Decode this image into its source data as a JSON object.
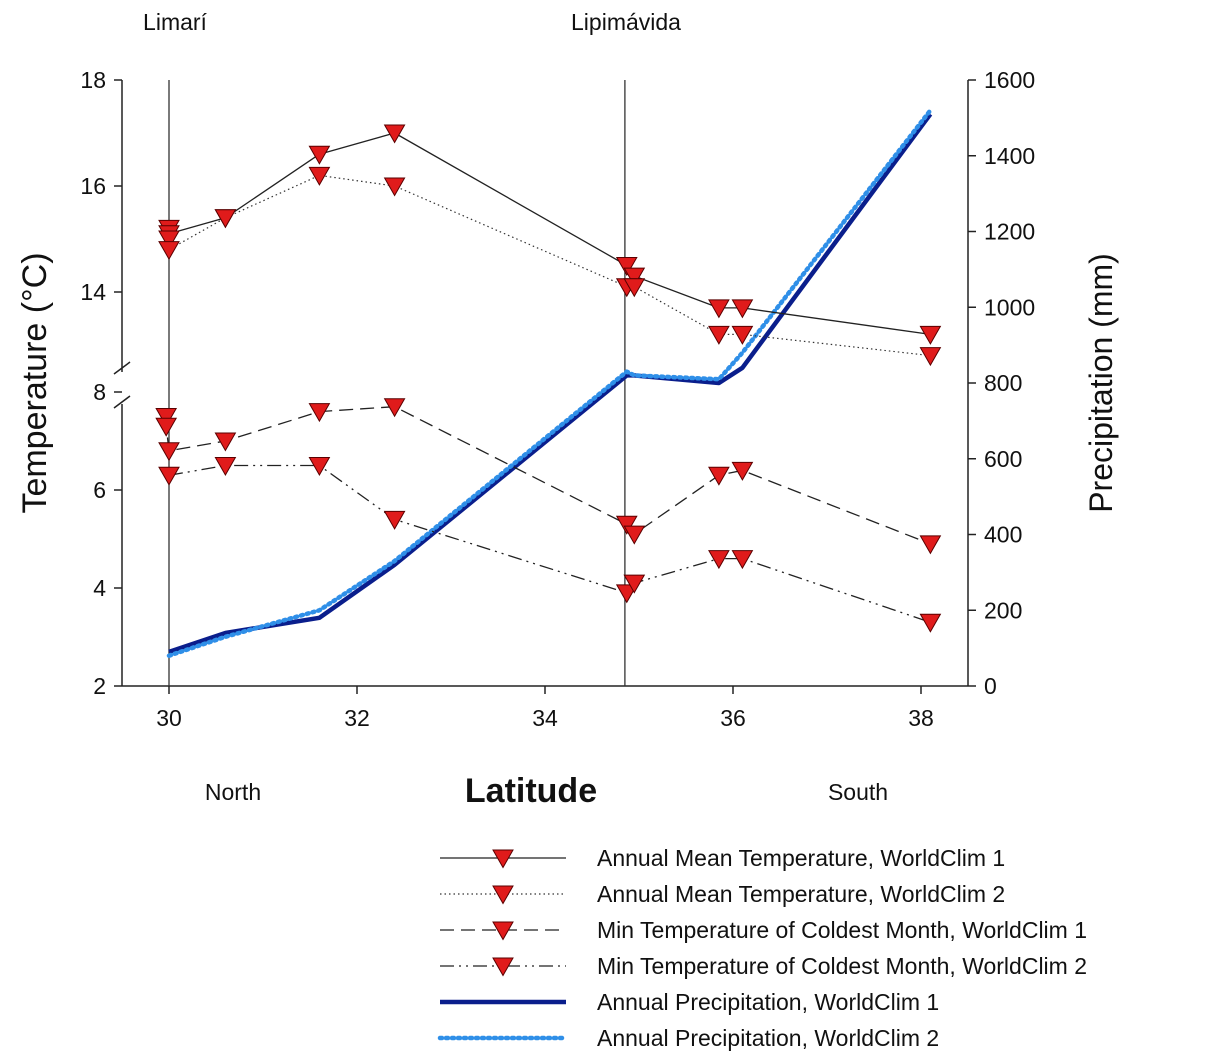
{
  "chart_data": {
    "type": "line",
    "title": "",
    "xlabel": "Latitude",
    "ylabel_left": "Temperature (°C)",
    "ylabel_right": "Precipitation (mm)",
    "direction_labels": {
      "left": "North",
      "right": "South"
    },
    "site_labels": [
      {
        "name": "Limarí",
        "x": 30.0
      },
      {
        "name": "Lipimávida",
        "x": 34.85
      }
    ],
    "xlim": [
      29.5,
      38.5
    ],
    "x_ticks": [
      30,
      32,
      34,
      36,
      38
    ],
    "y_left_upper": {
      "ylim": [
        12,
        18
      ],
      "ticks": [
        14,
        16,
        18
      ]
    },
    "y_left_lower": {
      "ylim": [
        2,
        8
      ],
      "ticks": [
        2,
        4,
        6,
        8
      ]
    },
    "y_left_break": true,
    "y_right": {
      "ylim": [
        0,
        1600
      ],
      "ticks": [
        0,
        200,
        400,
        600,
        800,
        1000,
        1200,
        1400,
        1600
      ]
    },
    "series": [
      {
        "name": "Annual Mean Temperature, WorldClim 1",
        "axis": "left",
        "line_style": "solid",
        "marker": "triangle-down",
        "x": [
          30.0,
          30.0,
          30.6,
          31.6,
          32.4,
          34.87,
          34.95,
          35.85,
          36.1,
          38.1
        ],
        "y": [
          15.2,
          15.1,
          15.4,
          16.6,
          17.0,
          14.5,
          14.3,
          13.7,
          13.7,
          13.2
        ]
      },
      {
        "name": "Annual Mean Temperature, WorldClim 2",
        "axis": "left",
        "line_style": "dotted",
        "marker": "triangle-down",
        "x": [
          30.0,
          30.0,
          30.6,
          31.6,
          32.4,
          34.87,
          34.95,
          35.85,
          36.1,
          38.1
        ],
        "y": [
          15.0,
          14.8,
          15.4,
          16.2,
          16.0,
          14.1,
          14.1,
          13.2,
          13.2,
          12.8
        ]
      },
      {
        "name": "Min Temperature of Coldest Month, WorldClim 1",
        "axis": "left",
        "line_style": "dashed",
        "marker": "triangle-down",
        "x": [
          29.97,
          29.97,
          30.0,
          30.6,
          31.6,
          32.4,
          34.87,
          34.95,
          35.85,
          36.1,
          38.1
        ],
        "y": [
          7.5,
          7.3,
          6.8,
          7.0,
          7.6,
          7.7,
          5.3,
          5.1,
          6.3,
          6.4,
          4.9
        ]
      },
      {
        "name": "Min Temperature of Coldest Month, WorldClim 2",
        "axis": "left",
        "line_style": "dash-dot-dot",
        "marker": "triangle-down",
        "x": [
          30.0,
          30.6,
          31.6,
          32.4,
          34.87,
          34.95,
          35.85,
          36.1,
          38.1
        ],
        "y": [
          6.3,
          6.5,
          6.5,
          5.4,
          3.9,
          4.1,
          4.6,
          4.6,
          3.3
        ]
      },
      {
        "name": "Annual Precipitation, WorldClim 1",
        "axis": "right",
        "line_style": "solid-thick",
        "color": "#0a1e8c",
        "x": [
          30.0,
          30.6,
          31.6,
          32.4,
          34.87,
          34.95,
          35.85,
          36.1,
          38.1
        ],
        "y": [
          90,
          140,
          180,
          320,
          820,
          820,
          800,
          840,
          1510
        ]
      },
      {
        "name": "Annual Precipitation, WorldClim 2",
        "axis": "right",
        "line_style": "dotted-thick",
        "color": "#2f8fe8",
        "x": [
          30.0,
          30.6,
          31.6,
          32.4,
          34.87,
          34.95,
          35.85,
          36.1,
          38.1
        ],
        "y": [
          80,
          130,
          200,
          330,
          830,
          820,
          810,
          880,
          1520
        ]
      }
    ],
    "marker_color": "#e01b1b",
    "legend_position": "bottom"
  }
}
